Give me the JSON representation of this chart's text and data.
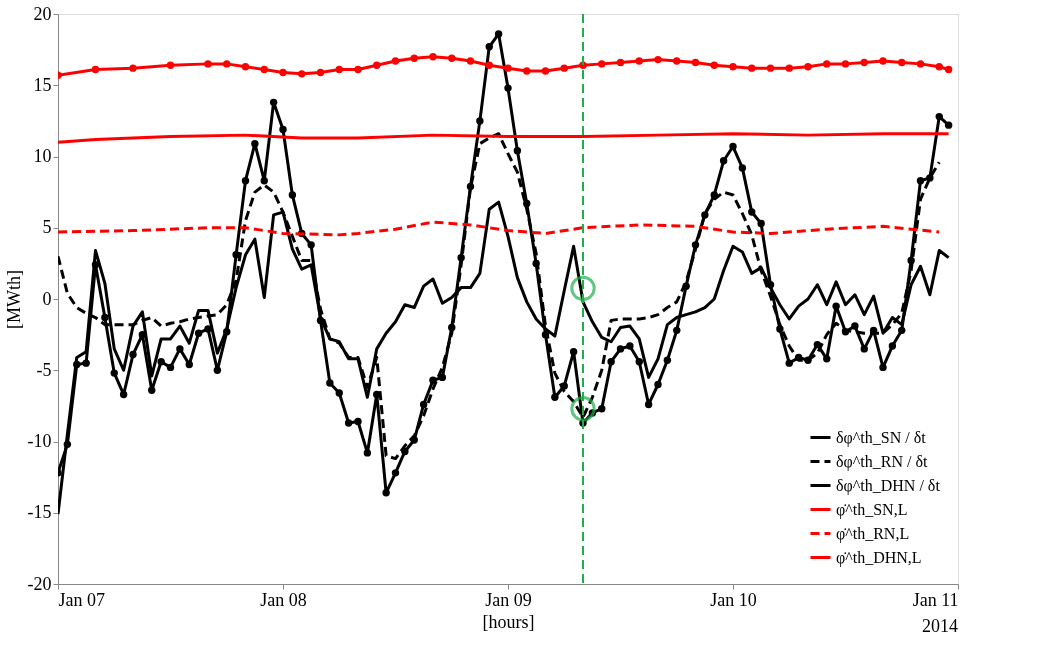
{
  "chart_data": {
    "type": "line",
    "xlabel": "[hours]",
    "ylabel": "[MWth]",
    "annotations": [
      "2014"
    ],
    "xlim": [
      "2014-01-07T00:00",
      "2014-01-11T00:00"
    ],
    "xticks": [
      {
        "value": "2014-01-07T00:00",
        "label": "Jan 07"
      },
      {
        "value": "2014-01-08T00:00",
        "label": "Jan 08"
      },
      {
        "value": "2014-01-09T00:00",
        "label": "Jan 09"
      },
      {
        "value": "2014-01-10T00:00",
        "label": "Jan 10"
      },
      {
        "value": "2014-01-11T00:00",
        "label": "Jan 11"
      }
    ],
    "ylim": [
      -20,
      20
    ],
    "yticks": [
      -20,
      -15,
      -10,
      -5,
      0,
      5,
      10,
      15,
      20
    ],
    "grid": false,
    "legend": "bottom right",
    "x": [
      "2014-01-07T00:00",
      "2014-01-07T01:00",
      "2014-01-07T02:00",
      "2014-01-07T03:00",
      "2014-01-07T04:00",
      "2014-01-07T05:00",
      "2014-01-07T06:00",
      "2014-01-07T07:00",
      "2014-01-07T08:00",
      "2014-01-07T09:00",
      "2014-01-07T10:00",
      "2014-01-07T11:00",
      "2014-01-07T12:00",
      "2014-01-07T13:00",
      "2014-01-07T14:00",
      "2014-01-07T15:00",
      "2014-01-07T16:00",
      "2014-01-07T17:00",
      "2014-01-07T18:00",
      "2014-01-07T19:00",
      "2014-01-07T20:00",
      "2014-01-07T21:00",
      "2014-01-07T22:00",
      "2014-01-07T23:00",
      "2014-01-08T00:00",
      "2014-01-08T01:00",
      "2014-01-08T02:00",
      "2014-01-08T03:00",
      "2014-01-08T04:00",
      "2014-01-08T05:00",
      "2014-01-08T06:00",
      "2014-01-08T07:00",
      "2014-01-08T08:00",
      "2014-01-08T09:00",
      "2014-01-08T10:00",
      "2014-01-08T11:00",
      "2014-01-08T12:00",
      "2014-01-08T13:00",
      "2014-01-08T14:00",
      "2014-01-08T15:00",
      "2014-01-08T16:00",
      "2014-01-08T17:00",
      "2014-01-08T18:00",
      "2014-01-08T19:00",
      "2014-01-08T20:00",
      "2014-01-08T21:00",
      "2014-01-08T22:00",
      "2014-01-08T23:00",
      "2014-01-09T00:00",
      "2014-01-09T01:00",
      "2014-01-09T02:00",
      "2014-01-09T03:00",
      "2014-01-09T04:00",
      "2014-01-09T05:00",
      "2014-01-09T06:00",
      "2014-01-09T07:00",
      "2014-01-09T08:00",
      "2014-01-09T09:00",
      "2014-01-09T10:00",
      "2014-01-09T11:00",
      "2014-01-09T12:00",
      "2014-01-09T13:00",
      "2014-01-09T14:00",
      "2014-01-09T15:00",
      "2014-01-09T16:00",
      "2014-01-09T17:00",
      "2014-01-09T18:00",
      "2014-01-09T19:00",
      "2014-01-09T20:00",
      "2014-01-09T21:00",
      "2014-01-09T22:00",
      "2014-01-09T23:00",
      "2014-01-10T00:00",
      "2014-01-10T01:00",
      "2014-01-10T02:00",
      "2014-01-10T03:00",
      "2014-01-10T04:00",
      "2014-01-10T05:00",
      "2014-01-10T06:00",
      "2014-01-10T07:00",
      "2014-01-10T08:00",
      "2014-01-10T09:00",
      "2014-01-10T10:00",
      "2014-01-10T11:00",
      "2014-01-10T12:00",
      "2014-01-10T13:00",
      "2014-01-10T14:00",
      "2014-01-10T15:00",
      "2014-01-10T16:00",
      "2014-01-10T17:00",
      "2014-01-10T18:00",
      "2014-01-10T19:00",
      "2014-01-10T20:00",
      "2014-01-10T21:00",
      "2014-01-10T22:00",
      "2014-01-10T23:00"
    ],
    "series": [
      {
        "name": "δφ^th_SN / δt",
        "type": "line",
        "color": "#000000",
        "line_style": "solid",
        "marker": "none",
        "values": [
          -15.1,
          -9.5,
          -4.1,
          -3.7,
          3.4,
          1.1,
          -3.5,
          -5.0,
          -1.9,
          -0.9,
          -5.4,
          -2.8,
          -2.8,
          -1.9,
          -3.1,
          -0.8,
          -0.8,
          -3.8,
          -2.1,
          0.8,
          3.1,
          4.2,
          0.1,
          5.9,
          6.1,
          3.5,
          2.1,
          2.4,
          -1.3,
          -2.8,
          -3.0,
          -4.2,
          -4.2,
          -6.9,
          -3.5,
          -2.4,
          -1.6,
          -0.4,
          -0.6,
          0.9,
          1.4,
          -0.3,
          0.1,
          0.8,
          0.8,
          1.8,
          6.3,
          6.8,
          4.4,
          1.5,
          -0.2,
          -1.4,
          -2.1,
          -2.6,
          0.6,
          3.7,
          -0.2,
          -1.6,
          -2.7,
          -3.0,
          -2.0,
          -1.9,
          -2.8,
          -5.5,
          -4.2,
          -1.8,
          -1.3,
          -1.1,
          -0.9,
          -0.6,
          0.0,
          2.0,
          3.7,
          3.3,
          1.8,
          2.2,
          0.8,
          -0.4,
          -1.4,
          -0.5,
          0.0,
          1.0,
          -0.4,
          1.2,
          -0.4,
          0.3,
          -1.1,
          0.2,
          -2.4,
          -1.3,
          -1.8,
          1.0,
          2.3,
          0.3,
          3.4,
          2.9
        ]
      },
      {
        "name": "δφ^th_RN / δt",
        "type": "line",
        "color": "#000000",
        "line_style": "dashed",
        "marker": "none",
        "values": [
          3.0,
          0.4,
          -0.6,
          -1.0,
          -1.3,
          -1.8,
          -1.8,
          -1.8,
          -1.8,
          -1.5,
          -1.3,
          -1.9,
          -1.7,
          -1.6,
          -1.4,
          -1.3,
          -1.2,
          -1.1,
          -0.4,
          1.3,
          5.5,
          7.5,
          8.0,
          7.5,
          6.1,
          4.4,
          2.7,
          2.7,
          -0.7,
          -2.8,
          -3.1,
          -4.1,
          -4.1,
          -6.2,
          -4.1,
          -11.0,
          -11.2,
          -10.3,
          -9.6,
          -8.2,
          -6.3,
          -4.8,
          -2.4,
          2.4,
          7.8,
          10.9,
          11.3,
          11.6,
          10.2,
          8.9,
          6.3,
          3.2,
          -1.9,
          -5.2,
          -6.5,
          -7.2,
          -8.3,
          -6.9,
          -5.0,
          -1.5,
          -1.4,
          -1.4,
          -1.4,
          -1.3,
          -1.1,
          -0.6,
          -0.2,
          1.2,
          3.5,
          6.0,
          7.0,
          7.5,
          7.3,
          6.0,
          4.5,
          2.0,
          0.2,
          -1.8,
          -3.3,
          -4.3,
          -4.3,
          -3.8,
          -2.5,
          -1.7,
          -2.2,
          -2.3,
          -2.4,
          -2.4,
          -2.4,
          -1.8,
          -1.0,
          2.0,
          7.0,
          8.5,
          9.6,
          null
        ]
      },
      {
        "name": "δφ^th_DHN / δt",
        "type": "line",
        "color": "#000000",
        "line_style": "solid",
        "marker": "circle",
        "values": [
          -12.2,
          -10.2,
          -4.6,
          -4.5,
          2.4,
          -1.3,
          -5.2,
          -6.7,
          -3.9,
          -2.5,
          -6.4,
          -4.4,
          -4.8,
          -3.5,
          -4.6,
          -2.4,
          -2.1,
          -5.0,
          -2.3,
          3.1,
          8.3,
          10.9,
          8.3,
          13.8,
          11.9,
          7.3,
          4.6,
          3.8,
          -1.5,
          -5.9,
          -6.6,
          -8.7,
          -8.6,
          -10.8,
          -6.7,
          -13.6,
          -12.2,
          -10.7,
          -9.9,
          -7.4,
          -5.7,
          -5.5,
          -2.0,
          2.9,
          7.9,
          12.5,
          17.7,
          18.6,
          14.8,
          10.4,
          6.7,
          2.5,
          -2.5,
          -6.9,
          -6.1,
          -3.7,
          -8.7,
          -8.0,
          -7.7,
          -4.4,
          -3.5,
          -3.3,
          -4.4,
          -7.4,
          -6.0,
          -4.3,
          -2.2,
          0.9,
          3.8,
          5.9,
          7.3,
          9.7,
          10.7,
          9.2,
          6.1,
          5.3,
          1.0,
          -2.1,
          -4.5,
          -4.1,
          -4.3,
          -3.2,
          -4.2,
          -0.5,
          -2.3,
          -1.9,
          -3.5,
          -2.2,
          -4.8,
          -3.3,
          -2.2,
          2.7,
          8.3,
          8.5,
          12.8,
          12.2
        ]
      },
      {
        "name": "φ̇^th_SN,L",
        "type": "line",
        "color": "#ff0000",
        "line_style": "solid",
        "marker": "none",
        "x": [
          "2014-01-07T00:00",
          "2014-01-07T04:00",
          "2014-01-07T12:00",
          "2014-01-07T20:00",
          "2014-01-08T02:00",
          "2014-01-08T08:00",
          "2014-01-08T16:00",
          "2014-01-09T00:00",
          "2014-01-09T08:00",
          "2014-01-09T16:00",
          "2014-01-10T00:00",
          "2014-01-10T08:00",
          "2014-01-10T16:00",
          "2014-01-10T23:00"
        ],
        "values": [
          11.0,
          11.2,
          11.4,
          11.5,
          11.3,
          11.3,
          11.5,
          11.4,
          11.4,
          11.5,
          11.6,
          11.5,
          11.6,
          11.6
        ]
      },
      {
        "name": "φ̇^th_RN,L",
        "type": "line",
        "color": "#ff0000",
        "line_style": "dashed",
        "marker": "none",
        "x": [
          "2014-01-07T00:00",
          "2014-01-07T08:00",
          "2014-01-07T16:00",
          "2014-01-07T20:00",
          "2014-01-08T00:00",
          "2014-01-08T06:00",
          "2014-01-08T08:00",
          "2014-01-08T12:00",
          "2014-01-08T16:00",
          "2014-01-08T20:00",
          "2014-01-09T00:00",
          "2014-01-09T04:00",
          "2014-01-09T08:00",
          "2014-01-09T14:00",
          "2014-01-09T20:00",
          "2014-01-10T00:00",
          "2014-01-10T04:00",
          "2014-01-10T10:00",
          "2014-01-10T16:00",
          "2014-01-10T22:00"
        ],
        "values": [
          4.7,
          4.8,
          5.0,
          5.0,
          4.6,
          4.5,
          4.6,
          4.9,
          5.4,
          5.2,
          4.8,
          4.6,
          5.0,
          5.2,
          5.1,
          4.7,
          4.6,
          4.9,
          5.1,
          4.7
        ]
      },
      {
        "name": "φ̇^th_DHN,L",
        "type": "line",
        "color": "#ff0000",
        "line_style": "solid",
        "marker": "circle",
        "x": [
          "2014-01-07T00:00",
          "2014-01-07T04:00",
          "2014-01-07T08:00",
          "2014-01-07T12:00",
          "2014-01-07T16:00",
          "2014-01-07T18:00",
          "2014-01-07T20:00",
          "2014-01-07T22:00",
          "2014-01-08T00:00",
          "2014-01-08T02:00",
          "2014-01-08T04:00",
          "2014-01-08T06:00",
          "2014-01-08T08:00",
          "2014-01-08T10:00",
          "2014-01-08T12:00",
          "2014-01-08T14:00",
          "2014-01-08T16:00",
          "2014-01-08T18:00",
          "2014-01-08T20:00",
          "2014-01-08T22:00",
          "2014-01-09T00:00",
          "2014-01-09T02:00",
          "2014-01-09T04:00",
          "2014-01-09T06:00",
          "2014-01-09T08:00",
          "2014-01-09T10:00",
          "2014-01-09T12:00",
          "2014-01-09T14:00",
          "2014-01-09T16:00",
          "2014-01-09T18:00",
          "2014-01-09T20:00",
          "2014-01-09T22:00",
          "2014-01-10T00:00",
          "2014-01-10T02:00",
          "2014-01-10T04:00",
          "2014-01-10T06:00",
          "2014-01-10T08:00",
          "2014-01-10T10:00",
          "2014-01-10T12:00",
          "2014-01-10T14:00",
          "2014-01-10T16:00",
          "2014-01-10T18:00",
          "2014-01-10T20:00",
          "2014-01-10T22:00",
          "2014-01-10T23:00"
        ],
        "values": [
          15.7,
          16.1,
          16.2,
          16.4,
          16.5,
          16.5,
          16.3,
          16.1,
          15.9,
          15.8,
          15.9,
          16.1,
          16.1,
          16.4,
          16.7,
          16.9,
          17.0,
          16.9,
          16.7,
          16.4,
          16.2,
          16.0,
          16.0,
          16.2,
          16.4,
          16.5,
          16.6,
          16.7,
          16.8,
          16.7,
          16.6,
          16.4,
          16.3,
          16.2,
          16.2,
          16.2,
          16.3,
          16.5,
          16.5,
          16.6,
          16.7,
          16.6,
          16.5,
          16.3,
          16.1
        ]
      },
      {
        "type": "scatter",
        "color": "#1fae4b",
        "marker": "circle",
        "x": [
          "2014-01-09T08:00",
          "2014-01-09T08:00"
        ],
        "values": [
          0.75,
          -7.7
        ]
      }
    ],
    "ref_lines": [
      {
        "axis": "x",
        "value": "2014-01-09T08:00",
        "color": "#1fae4b",
        "line_style": "dashed"
      }
    ]
  }
}
